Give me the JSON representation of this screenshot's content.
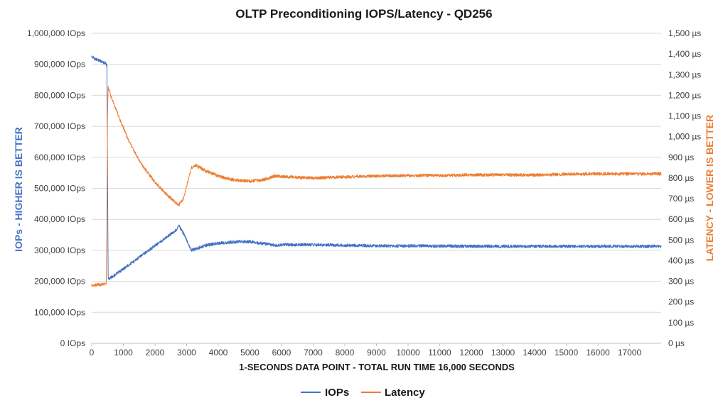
{
  "chart_data": {
    "type": "line",
    "title": "OLTP Preconditioning IOPS/Latency - QD256",
    "xlabel": "1-SECONDS DATA POINT - TOTAL RUN TIME 16,000 SECONDS",
    "ylabel_left": "IOPs - HIGHER IS BETTER",
    "ylabel_right": "LATENCY - LOWER IS BETTER",
    "xlim": [
      0,
      18000
    ],
    "ylim_left": [
      0,
      1000000
    ],
    "ylim_right": [
      0,
      1500
    ],
    "x_ticks": [
      "0",
      "1000",
      "2000",
      "3000",
      "4000",
      "5000",
      "6000",
      "7000",
      "8000",
      "9000",
      "10000",
      "11000",
      "12000",
      "13000",
      "14000",
      "15000",
      "16000",
      "17000"
    ],
    "y_ticks_left": [
      "0 IOps",
      "100,000 IOps",
      "200,000 IOps",
      "300,000 IOps",
      "400,000 IOps",
      "500,000 IOps",
      "600,000 IOps",
      "700,000 IOps",
      "800,000 IOps",
      "900,000 IOps",
      "1,000,000 IOps"
    ],
    "y_ticks_right": [
      "0 µs",
      "100 µs",
      "200 µs",
      "300 µs",
      "400 µs",
      "500 µs",
      "600 µs",
      "700 µs",
      "800 µs",
      "900 µs",
      "1,000 µs",
      "1,100 µs",
      "1,200 µs",
      "1,300 µs",
      "1,400 µs",
      "1,500 µs"
    ],
    "grid": true,
    "legend_position": "bottom",
    "series": [
      {
        "name": "IOPs",
        "axis": "left",
        "color": "#4472c4",
        "x": [
          0,
          100,
          300,
          450,
          480,
          500,
          520,
          800,
          1200,
          1600,
          2000,
          2400,
          2700,
          2750,
          2900,
          3150,
          3300,
          3600,
          4000,
          4500,
          5000,
          5400,
          5800,
          6200,
          7000,
          8000,
          9000,
          10000,
          11000,
          12000,
          13000,
          14000,
          15000,
          16000,
          17000,
          18000
        ],
        "values": [
          925000,
          918000,
          910000,
          902000,
          896000,
          560000,
          207000,
          225000,
          255000,
          285000,
          315000,
          345000,
          368000,
          380000,
          355000,
          300000,
          305000,
          316000,
          323000,
          327000,
          328000,
          322000,
          316000,
          318000,
          318000,
          316000,
          315000,
          314000,
          314000,
          313000,
          313000,
          313000,
          313000,
          313000,
          313000,
          313000
        ]
      },
      {
        "name": "Latency",
        "axis": "right",
        "color": "#ed7d31",
        "x": [
          0,
          100,
          300,
          460,
          480,
          500,
          520,
          600,
          900,
          1200,
          1600,
          2000,
          2400,
          2750,
          2900,
          3150,
          3300,
          3600,
          4000,
          4500,
          5000,
          5400,
          5800,
          6200,
          7000,
          8000,
          9000,
          10000,
          11000,
          12000,
          13000,
          14000,
          15000,
          16000,
          17000,
          18000
        ],
        "values": [
          283,
          282,
          285,
          290,
          600,
          1120,
          1240,
          1200,
          1080,
          970,
          860,
          780,
          715,
          670,
          700,
          850,
          860,
          835,
          810,
          790,
          785,
          790,
          810,
          805,
          800,
          805,
          810,
          812,
          812,
          815,
          815,
          815,
          818,
          820,
          820,
          820
        ]
      }
    ]
  }
}
